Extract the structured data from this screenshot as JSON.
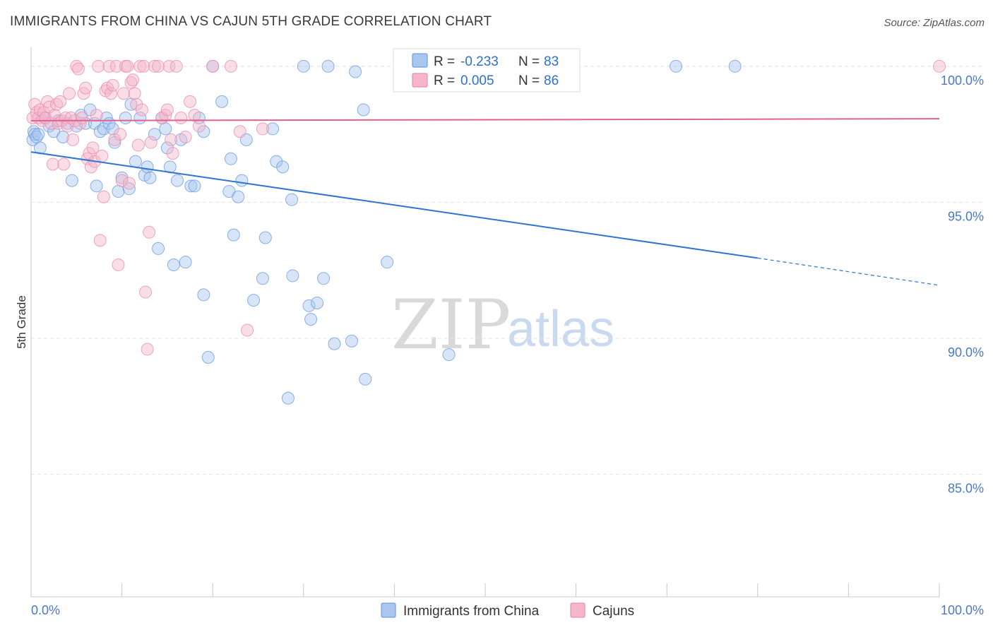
{
  "title": "IMMIGRANTS FROM CHINA VS CAJUN 5TH GRADE CORRELATION CHART",
  "source": "Source: ZipAtlas.com",
  "watermark": {
    "zip": "ZIP",
    "atlas": "atlas"
  },
  "legend": {
    "r_label": "R =",
    "n_label": "N =",
    "rows": [
      {
        "r": "-0.233",
        "n": "83",
        "color": "#a9c6ef"
      },
      {
        "r": "0.005",
        "n": "86",
        "color": "#f5b6c9"
      }
    ]
  },
  "bottom_legend": [
    "Immigrants from China",
    "Cajuns"
  ],
  "chart_data": {
    "type": "scatter",
    "title": "IMMIGRANTS FROM CHINA VS CAJUN 5TH GRADE CORRELATION CHART",
    "xlabel": "",
    "ylabel": "5th Grade",
    "xlim": [
      0,
      100
    ],
    "ylim": [
      80.5,
      100.8
    ],
    "x_tick_labels": [
      "0.0%",
      "100.0%"
    ],
    "y_ticks": [
      85,
      90,
      95,
      100
    ],
    "y_tick_labels": [
      "85.0%",
      "90.0%",
      "95.0%",
      "100.0%"
    ],
    "grid": true,
    "legend_position": "top-center",
    "series": [
      {
        "name": "Immigrants from China",
        "color": "#6f9fe0",
        "fill": "#a9c6ef",
        "trend": {
          "x0": 0,
          "y0": 96.85,
          "x1": 80,
          "y1": 92.95,
          "dashed_to_x": 100,
          "dashed_to_y": 91.95,
          "color": "#2f74d0"
        },
        "points": [
          [
            0.2,
            97.3
          ],
          [
            0.3,
            97.6
          ],
          [
            0.4,
            97.5
          ],
          [
            0.6,
            97.4
          ],
          [
            0.8,
            97.5
          ],
          [
            1.0,
            97.0
          ],
          [
            1.5,
            98.1
          ],
          [
            2.0,
            97.8
          ],
          [
            2.5,
            97.6
          ],
          [
            3.0,
            98.0
          ],
          [
            3.5,
            97.4
          ],
          [
            4.0,
            97.9
          ],
          [
            4.5,
            95.8
          ],
          [
            5.0,
            97.8
          ],
          [
            5.5,
            98.2
          ],
          [
            6.0,
            97.9
          ],
          [
            6.5,
            98.4
          ],
          [
            7.0,
            97.9
          ],
          [
            7.2,
            95.6
          ],
          [
            7.6,
            97.6
          ],
          [
            8.0,
            97.7
          ],
          [
            8.3,
            98.1
          ],
          [
            8.6,
            97.9
          ],
          [
            9.0,
            97.7
          ],
          [
            9.2,
            97.2
          ],
          [
            9.6,
            95.4
          ],
          [
            10.0,
            95.9
          ],
          [
            10.4,
            98.1
          ],
          [
            10.8,
            95.5
          ],
          [
            11.0,
            98.6
          ],
          [
            11.5,
            96.5
          ],
          [
            12.0,
            98.1
          ],
          [
            12.5,
            96.0
          ],
          [
            12.8,
            96.3
          ],
          [
            13.1,
            95.9
          ],
          [
            13.6,
            97.5
          ],
          [
            14.0,
            93.3
          ],
          [
            14.4,
            98.1
          ],
          [
            14.8,
            97.7
          ],
          [
            15.0,
            97.0
          ],
          [
            15.3,
            96.3
          ],
          [
            15.7,
            92.7
          ],
          [
            16.1,
            95.8
          ],
          [
            16.5,
            97.3
          ],
          [
            17.0,
            92.8
          ],
          [
            17.6,
            95.6
          ],
          [
            18.0,
            95.6
          ],
          [
            18.5,
            98.1
          ],
          [
            19.0,
            97.6
          ],
          [
            19.0,
            91.6
          ],
          [
            19.5,
            89.3
          ],
          [
            20.0,
            100.0
          ],
          [
            21.0,
            98.7
          ],
          [
            21.8,
            95.4
          ],
          [
            22.0,
            96.6
          ],
          [
            22.3,
            93.8
          ],
          [
            22.8,
            95.2
          ],
          [
            23.2,
            95.8
          ],
          [
            23.7,
            97.3
          ],
          [
            24.5,
            91.4
          ],
          [
            25.5,
            92.2
          ],
          [
            25.8,
            93.7
          ],
          [
            26.6,
            97.7
          ],
          [
            27.0,
            96.5
          ],
          [
            27.7,
            96.3
          ],
          [
            28.3,
            87.8
          ],
          [
            28.7,
            95.1
          ],
          [
            28.8,
            92.3
          ],
          [
            30.0,
            100.0
          ],
          [
            30.6,
            91.2
          ],
          [
            30.8,
            90.7
          ],
          [
            31.5,
            91.3
          ],
          [
            32.2,
            92.2
          ],
          [
            32.7,
            100.0
          ],
          [
            33.4,
            89.8
          ],
          [
            35.3,
            89.9
          ],
          [
            35.7,
            99.8
          ],
          [
            36.6,
            98.4
          ],
          [
            36.8,
            88.5
          ],
          [
            39.2,
            92.8
          ],
          [
            46.0,
            89.4
          ],
          [
            71.0,
            100.0
          ],
          [
            77.5,
            100.0
          ]
        ]
      },
      {
        "name": "Cajuns",
        "color": "#ec8fb0",
        "fill": "#f5b6c9",
        "trend": {
          "x0": 0,
          "y0": 98.0,
          "x1": 100,
          "y1": 98.07,
          "color": "#e3608e"
        },
        "points": [
          [
            0.2,
            98.1
          ],
          [
            0.4,
            98.6
          ],
          [
            0.6,
            98.3
          ],
          [
            0.8,
            98.1
          ],
          [
            1.0,
            98.4
          ],
          [
            1.2,
            98.0
          ],
          [
            1.4,
            98.3
          ],
          [
            1.6,
            98.1
          ],
          [
            1.8,
            98.7
          ],
          [
            2.0,
            98.5
          ],
          [
            2.2,
            97.9
          ],
          [
            2.4,
            96.4
          ],
          [
            2.6,
            98.2
          ],
          [
            2.8,
            98.6
          ],
          [
            3.0,
            97.9
          ],
          [
            3.2,
            98.7
          ],
          [
            3.4,
            98.0
          ],
          [
            3.6,
            96.4
          ],
          [
            3.8,
            98.1
          ],
          [
            4.0,
            97.8
          ],
          [
            4.2,
            99.0
          ],
          [
            4.4,
            98.1
          ],
          [
            4.6,
            97.3
          ],
          [
            4.8,
            98.0
          ],
          [
            5.0,
            100.0
          ],
          [
            5.2,
            99.9
          ],
          [
            5.4,
            97.9
          ],
          [
            5.6,
            98.1
          ],
          [
            5.8,
            99.0
          ],
          [
            6.0,
            99.2
          ],
          [
            6.2,
            96.6
          ],
          [
            6.4,
            96.8
          ],
          [
            6.6,
            96.3
          ],
          [
            6.8,
            97.0
          ],
          [
            7.0,
            96.5
          ],
          [
            7.2,
            98.2
          ],
          [
            7.4,
            100.0
          ],
          [
            7.6,
            93.6
          ],
          [
            7.8,
            96.7
          ],
          [
            8.0,
            95.2
          ],
          [
            8.2,
            99.1
          ],
          [
            8.4,
            99.2
          ],
          [
            8.6,
            100.0
          ],
          [
            8.8,
            99.0
          ],
          [
            9.0,
            99.3
          ],
          [
            9.2,
            97.3
          ],
          [
            9.4,
            100.0
          ],
          [
            9.6,
            92.7
          ],
          [
            9.8,
            97.5
          ],
          [
            10.0,
            95.8
          ],
          [
            10.2,
            99.0
          ],
          [
            10.4,
            100.0
          ],
          [
            10.6,
            100.0
          ],
          [
            10.8,
            95.7
          ],
          [
            11.0,
            99.4
          ],
          [
            11.2,
            99.5
          ],
          [
            11.4,
            99.0
          ],
          [
            11.6,
            98.6
          ],
          [
            11.8,
            97.1
          ],
          [
            12.0,
            100.0
          ],
          [
            12.2,
            98.4
          ],
          [
            12.4,
            100.0
          ],
          [
            12.6,
            91.7
          ],
          [
            12.8,
            89.6
          ],
          [
            13.0,
            93.9
          ],
          [
            13.2,
            97.2
          ],
          [
            13.6,
            100.0
          ],
          [
            14.0,
            100.0
          ],
          [
            14.4,
            98.1
          ],
          [
            14.8,
            98.2
          ],
          [
            15.0,
            98.4
          ],
          [
            15.2,
            100.0
          ],
          [
            15.4,
            97.3
          ],
          [
            15.6,
            96.8
          ],
          [
            16.0,
            100.0
          ],
          [
            16.5,
            98.1
          ],
          [
            17.0,
            97.4
          ],
          [
            17.5,
            98.7
          ],
          [
            18.0,
            98.2
          ],
          [
            18.5,
            97.8
          ],
          [
            20.0,
            100.0
          ],
          [
            22.0,
            100.0
          ],
          [
            23.0,
            97.6
          ],
          [
            23.8,
            90.3
          ],
          [
            25.5,
            97.7
          ],
          [
            100.0,
            100.0
          ]
        ]
      }
    ]
  }
}
